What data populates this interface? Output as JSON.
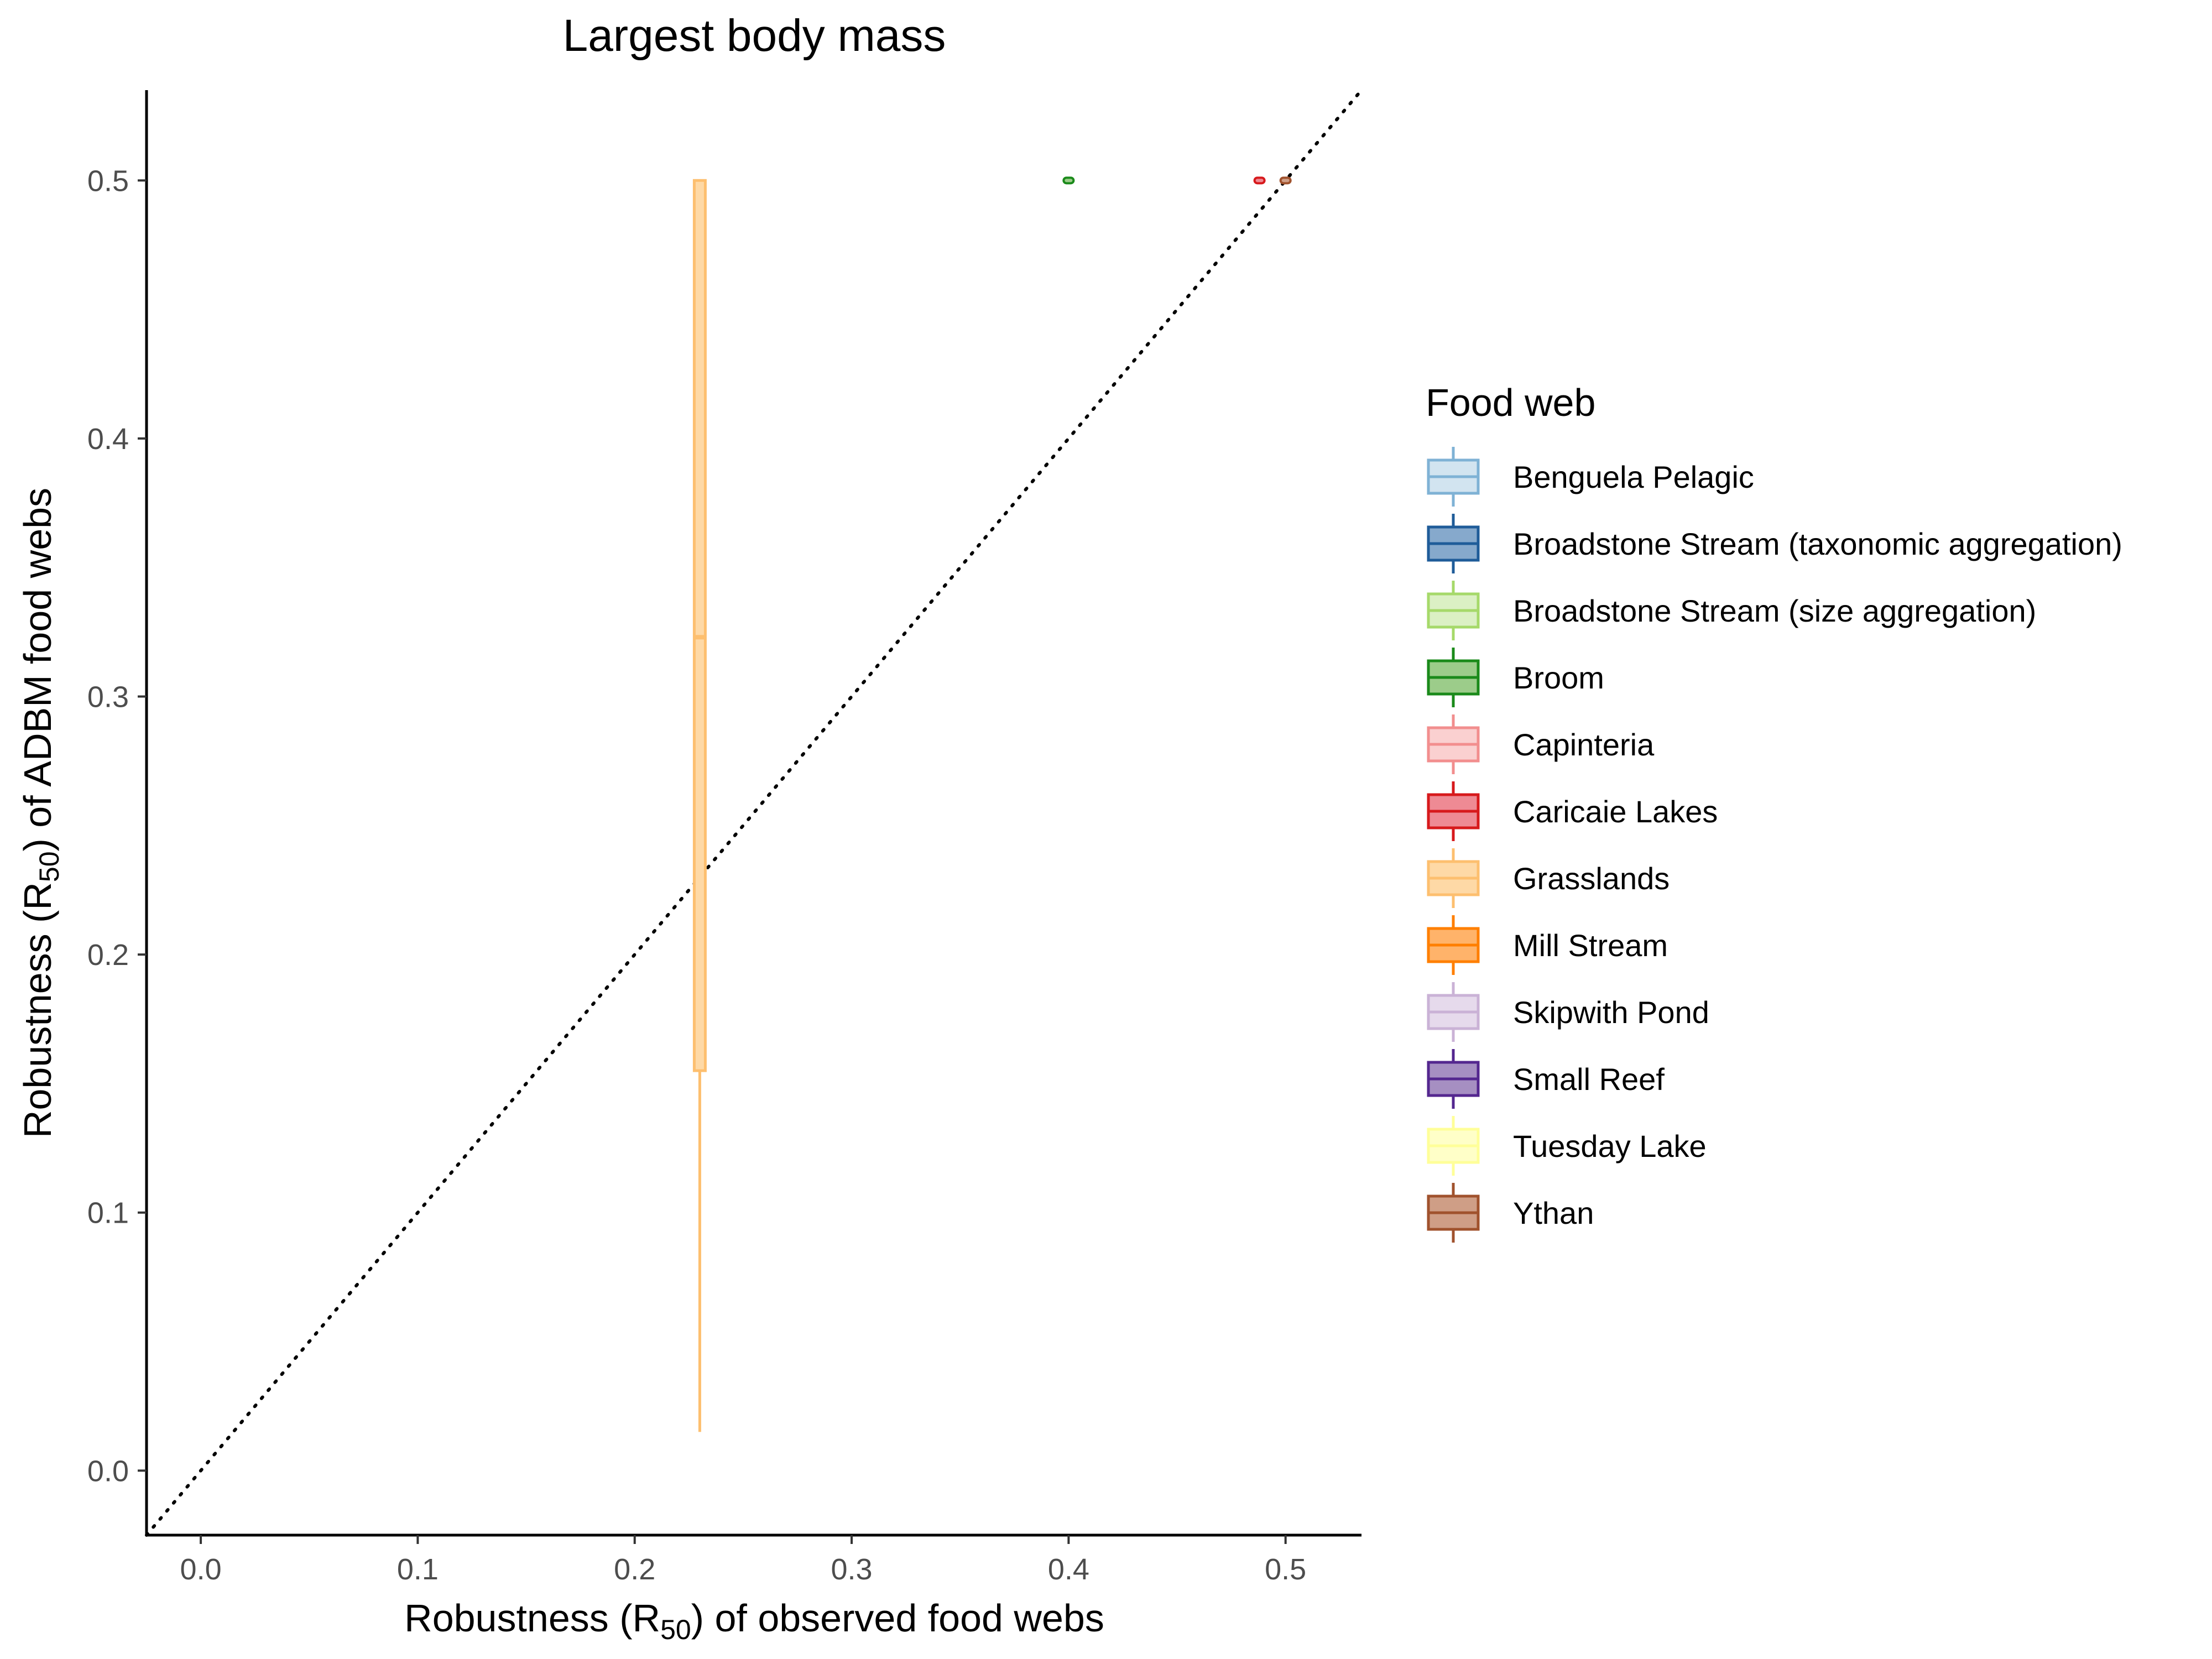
{
  "chart_data": {
    "type": "boxplot",
    "title": "Largest body mass",
    "xlabel": {
      "prefix": "Robustness (R",
      "sub": "50",
      "suffix": ") of observed food webs"
    },
    "ylabel": {
      "prefix": "Robustness (R",
      "sub": "50",
      "suffix": ") of ADBM food webs"
    },
    "xlim": [
      -0.025,
      0.535
    ],
    "ylim": [
      -0.025,
      0.535
    ],
    "x_ticks": [
      0.0,
      0.1,
      0.2,
      0.3,
      0.4,
      0.5
    ],
    "x_tick_labels": [
      "0.0",
      "0.1",
      "0.2",
      "0.3",
      "0.4",
      "0.5"
    ],
    "y_ticks": [
      0.0,
      0.1,
      0.2,
      0.3,
      0.4,
      0.5
    ],
    "y_tick_labels": [
      "0.0",
      "0.1",
      "0.2",
      "0.3",
      "0.4",
      "0.5"
    ],
    "reference_line": {
      "style": "dotted",
      "slope": 1,
      "intercept": 0
    },
    "grid": false,
    "legend": {
      "title": "Food web",
      "position": "right",
      "entries": [
        {
          "name": "Benguela Pelagic",
          "color": "#7FB2D5",
          "fill": "#D2E4F0"
        },
        {
          "name": "Broadstone Stream (taxonomic aggregation)",
          "color": "#1F5C99",
          "fill": "#86A9CC"
        },
        {
          "name": "Broadstone Stream (size aggregation)",
          "color": "#A6D96A",
          "fill": "#DBF0C4"
        },
        {
          "name": "Broom",
          "color": "#1A8A1A",
          "fill": "#9CCC8A"
        },
        {
          "name": "Capinteria",
          "color": "#F28E8E",
          "fill": "#FAD0D0"
        },
        {
          "name": "Caricaie Lakes",
          "color": "#D7191C",
          "fill": "#EE8A94"
        },
        {
          "name": "Grasslands",
          "color": "#FDBF6F",
          "fill": "#FED9A6"
        },
        {
          "name": "Mill Stream",
          "color": "#FF7F00",
          "fill": "#FFB36A"
        },
        {
          "name": "Skipwith Pond",
          "color": "#CAB2D6",
          "fill": "#E6DAEC"
        },
        {
          "name": "Small Reef",
          "color": "#54278F",
          "fill": "#A68FC2"
        },
        {
          "name": "Tuesday Lake",
          "color": "#FFFF99",
          "fill": "#FFFFC8"
        },
        {
          "name": "Ythan",
          "color": "#A0522D",
          "fill": "#CF9E86"
        }
      ]
    },
    "boxes": [
      {
        "series": "Grasslands",
        "x": 0.23,
        "min": 0.015,
        "q1": 0.155,
        "median": 0.323,
        "q3": 0.5,
        "max": 0.5
      },
      {
        "series": "Broom",
        "x": 0.4,
        "min": 0.5,
        "q1": 0.5,
        "median": 0.5,
        "q3": 0.5,
        "max": 0.5
      },
      {
        "series": "Caricaie Lakes",
        "x": 0.488,
        "min": 0.5,
        "q1": 0.5,
        "median": 0.5,
        "q3": 0.5,
        "max": 0.5
      },
      {
        "series": "Ythan",
        "x": 0.5,
        "min": 0.5,
        "q1": 0.5,
        "median": 0.5,
        "q3": 0.5,
        "max": 0.5
      }
    ]
  }
}
